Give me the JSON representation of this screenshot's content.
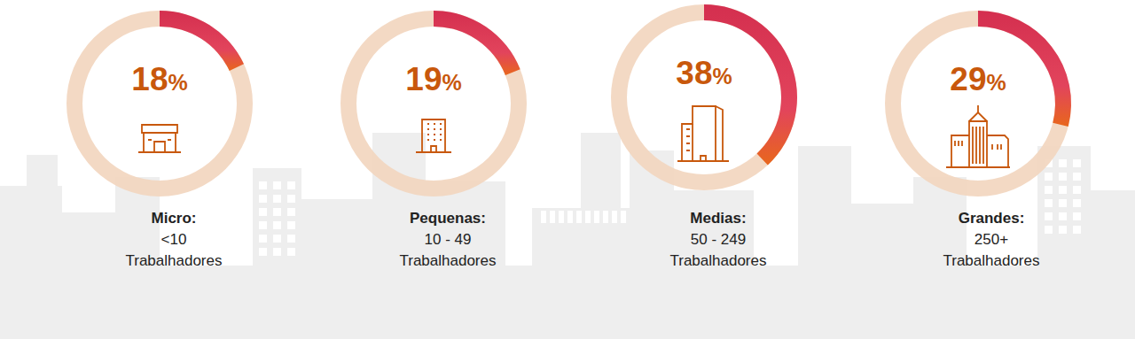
{
  "chart_data": {
    "type": "donut",
    "categories": [
      "Micro:",
      "Pequenas:",
      "Medias:",
      "Grandes:"
    ],
    "values": [
      18,
      19,
      38,
      29
    ],
    "value_labels": [
      "18%",
      "19%",
      "38%",
      "29%"
    ],
    "data_labels": true,
    "descriptions": [
      [
        "<10",
        "Trabalhadores"
      ],
      [
        "10 - 49",
        "Trabalhadores"
      ],
      [
        "50 - 249",
        "Trabalhadores"
      ],
      [
        "250+",
        "Trabalhadores"
      ]
    ]
  }
}
